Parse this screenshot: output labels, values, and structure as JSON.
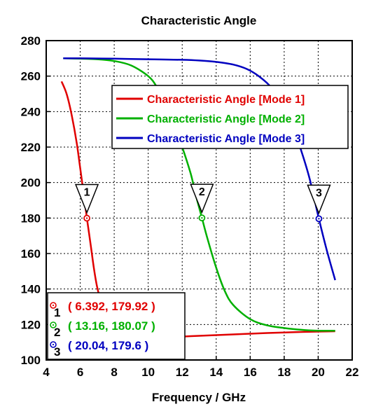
{
  "chart_data": {
    "type": "line",
    "title": "Characteristic Angle",
    "xlabel": "Frequency / GHz",
    "ylabel": "",
    "xlim": [
      4,
      22
    ],
    "ylim": [
      100,
      280
    ],
    "x_ticks": [
      4,
      6,
      8,
      10,
      12,
      14,
      16,
      18,
      20,
      22
    ],
    "y_ticks": [
      100,
      120,
      140,
      160,
      180,
      200,
      220,
      240,
      260,
      280
    ],
    "grid": true,
    "grid_style": "dotted",
    "legend_position": "top-right",
    "series": [
      {
        "name": "Characteristic Angle [Mode 1]",
        "color": "#e00000",
        "x": [
          4.9,
          5.2,
          5.5,
          5.8,
          6.0,
          6.2,
          6.392,
          6.6,
          6.8,
          7.0,
          7.3,
          7.6,
          8.0,
          8.5,
          9.0,
          10.0,
          11.0,
          12.0,
          13.0,
          14.0,
          15.0,
          16.0,
          17.0,
          18.0,
          19.0,
          20.0,
          21.0
        ],
        "values": [
          257,
          250,
          238,
          222,
          208,
          194,
          179.92,
          166,
          152,
          141,
          130,
          123,
          118,
          115,
          113.5,
          112.8,
          112.8,
          113.2,
          113.6,
          114,
          114.4,
          114.8,
          115.2,
          115.5,
          115.8,
          116,
          116.2
        ]
      },
      {
        "name": "Characteristic Angle [Mode 2]",
        "color": "#00b000",
        "x": [
          5.0,
          6.0,
          7.0,
          8.0,
          9.0,
          10.0,
          10.5,
          11.0,
          11.5,
          12.0,
          12.5,
          12.8,
          13.16,
          13.5,
          14.0,
          14.5,
          15.0,
          16.0,
          17.0,
          18.0,
          19.0,
          20.0,
          21.0
        ],
        "values": [
          270,
          269.8,
          269.5,
          268.5,
          266,
          260,
          254,
          245,
          233,
          220,
          205,
          193,
          180.07,
          168,
          152,
          139,
          131,
          123,
          119.5,
          118,
          117,
          116.5,
          116.5
        ]
      },
      {
        "name": "Characteristic Angle [Mode 3]",
        "color": "#0000c0",
        "x": [
          5.0,
          6.0,
          8.0,
          10.0,
          12.0,
          13.0,
          14.0,
          15.0,
          15.8,
          16.5,
          17.2,
          18.0,
          18.5,
          19.0,
          19.5,
          20.04,
          20.5,
          21.0
        ],
        "values": [
          270,
          270,
          269.8,
          269.5,
          269.2,
          268.8,
          268,
          266.5,
          264,
          260,
          254,
          243,
          232,
          218,
          202,
          179.6,
          162,
          145
        ]
      }
    ],
    "markers": [
      {
        "index": "1",
        "x": 6.392,
        "y": 179.92,
        "readout": "( 6.392, 179.92 )",
        "color": "#e00000"
      },
      {
        "index": "2",
        "x": 13.16,
        "y": 180.07,
        "readout": "( 13.16, 180.07 )",
        "color": "#00b000"
      },
      {
        "index": "3",
        "x": 20.04,
        "y": 179.6,
        "readout": "( 20.04, 179.6 )",
        "color": "#0000c0"
      }
    ]
  }
}
